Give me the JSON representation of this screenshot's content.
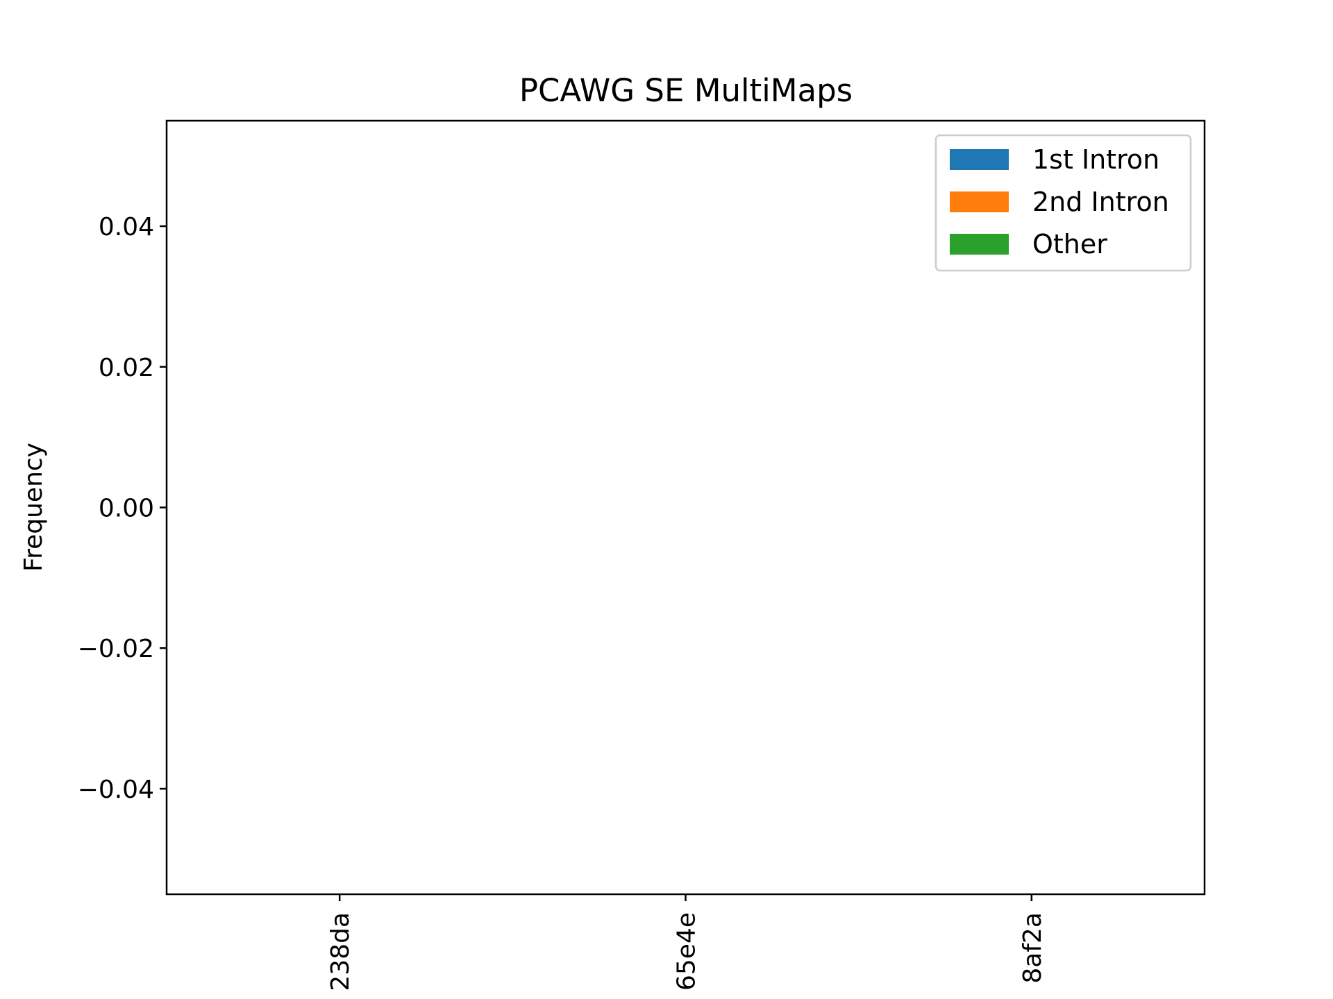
{
  "chart_data": {
    "type": "bar",
    "stacked": true,
    "title": "PCAWG SE MultiMaps",
    "xlabel": "",
    "ylabel": "Frequency",
    "ylim": [
      -0.055,
      0.055
    ],
    "yticks": [
      0.04,
      0.02,
      0.0,
      -0.02,
      -0.04
    ],
    "ytick_labels": [
      "0.04",
      "0.02",
      "0.00",
      "−0.02",
      "−0.04"
    ],
    "categories": [
      "238da",
      "65e4e",
      "8af2a"
    ],
    "xlim": [
      -0.5,
      2.5
    ],
    "legend_position": "upper-right",
    "grid": false,
    "series": [
      {
        "name": "1st Intron",
        "color": "#1f77b4",
        "values": [
          0,
          0,
          0
        ]
      },
      {
        "name": "2nd Intron",
        "color": "#ff7f0e",
        "values": [
          0,
          0,
          0
        ]
      },
      {
        "name": "Other",
        "color": "#2ca02c",
        "values": [
          0,
          0,
          0
        ]
      }
    ]
  }
}
